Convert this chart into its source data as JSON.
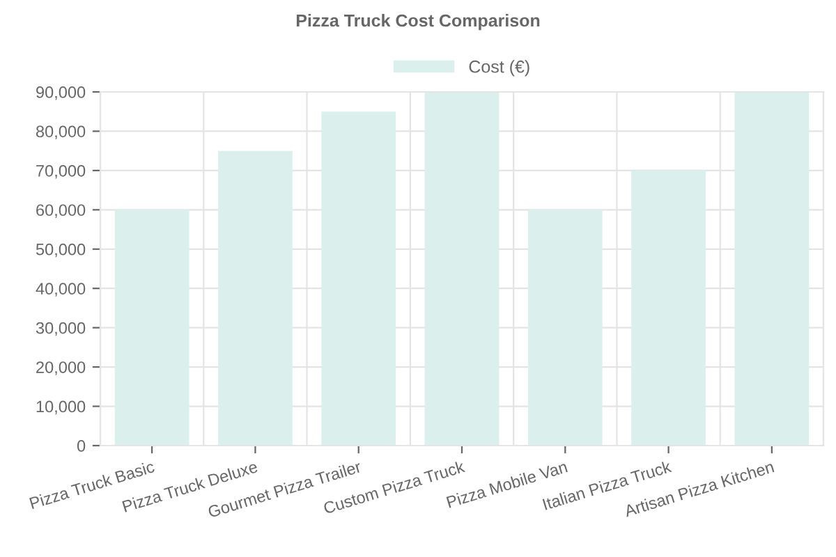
{
  "chart_data": {
    "type": "bar",
    "title": "Pizza Truck Cost Comparison",
    "categories": [
      "Pizza Truck Basic",
      "Pizza Truck Deluxe",
      "Gourmet Pizza Trailer",
      "Custom Pizza Truck",
      "Pizza Mobile Van",
      "Italian Pizza Truck",
      "Artisan Pizza Kitchen"
    ],
    "series": [
      {
        "name": "Cost (€)",
        "color": "#dbf0ed",
        "values": [
          60000,
          75000,
          85000,
          90000,
          60000,
          70000,
          90000
        ]
      }
    ],
    "ylim": [
      0,
      90000
    ],
    "yticks": [
      {
        "value": 0,
        "label": "0"
      },
      {
        "value": 10000,
        "label": "10,000"
      },
      {
        "value": 20000,
        "label": "20,000"
      },
      {
        "value": 30000,
        "label": "30,000"
      },
      {
        "value": 40000,
        "label": "40,000"
      },
      {
        "value": 50000,
        "label": "50,000"
      },
      {
        "value": 60000,
        "label": "60,000"
      },
      {
        "value": 70000,
        "label": "70,000"
      },
      {
        "value": 80000,
        "label": "80,000"
      },
      {
        "value": 90000,
        "label": "90,000"
      }
    ],
    "grid": true,
    "legend": "top"
  }
}
